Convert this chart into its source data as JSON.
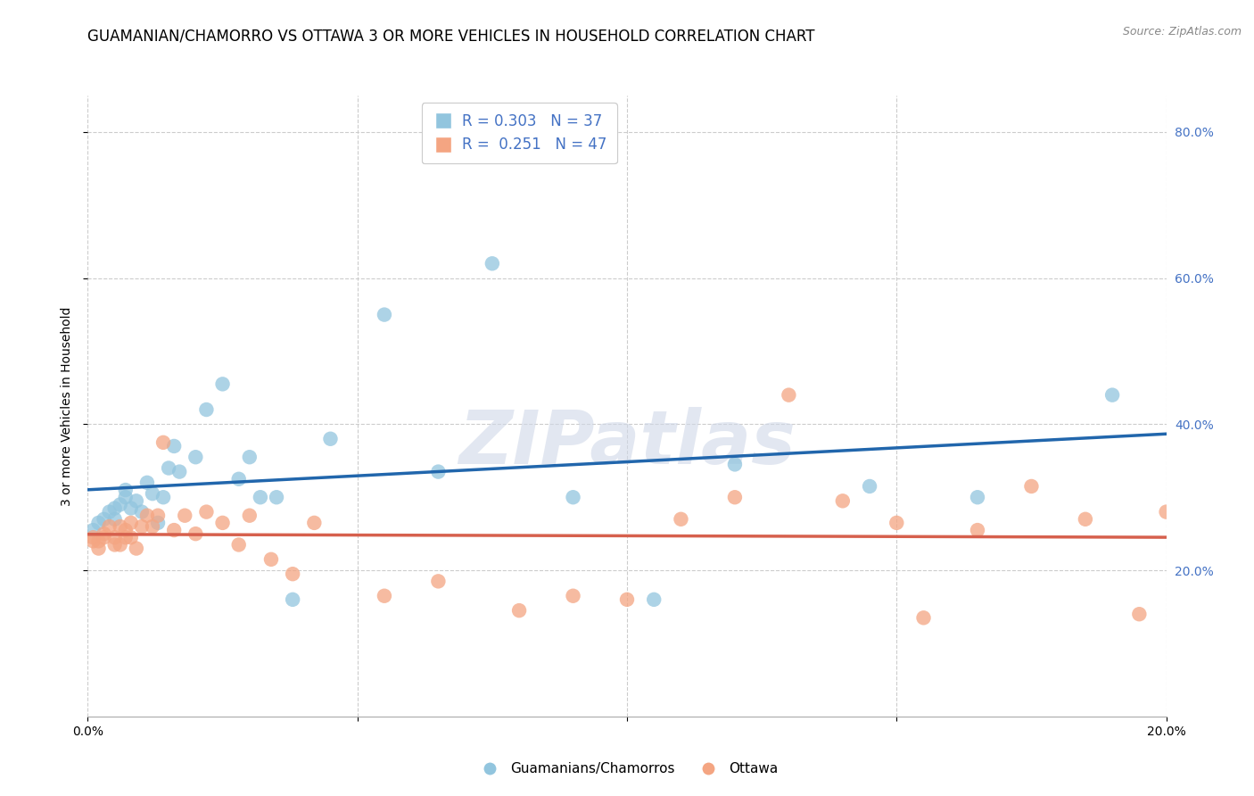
{
  "title": "GUAMANIAN/CHAMORRO VS OTTAWA 3 OR MORE VEHICLES IN HOUSEHOLD CORRELATION CHART",
  "source": "Source: ZipAtlas.com",
  "ylabel": "3 or more Vehicles in Household",
  "x_min": 0.0,
  "x_max": 0.2,
  "y_min": 0.0,
  "y_max": 0.85,
  "x_ticks": [
    0.0,
    0.05,
    0.1,
    0.15,
    0.2
  ],
  "x_tick_labels": [
    "0.0%",
    "",
    "",
    "",
    "20.0%"
  ],
  "y_ticks_right": [
    0.2,
    0.4,
    0.6,
    0.8
  ],
  "y_tick_labels_right": [
    "20.0%",
    "40.0%",
    "60.0%",
    "80.0%"
  ],
  "legend_blue_R": 0.303,
  "legend_blue_N": 37,
  "legend_pink_R": 0.251,
  "legend_pink_N": 47,
  "series_blue_label": "Guamanians/Chamorros",
  "series_pink_label": "Ottawa",
  "blue_color": "#92c5de",
  "pink_color": "#f4a582",
  "blue_line_color": "#2166ac",
  "pink_line_color": "#d6604d",
  "background_color": "#ffffff",
  "grid_color": "#cccccc",
  "blue_x": [
    0.001,
    0.002,
    0.003,
    0.004,
    0.005,
    0.005,
    0.006,
    0.007,
    0.007,
    0.008,
    0.009,
    0.01,
    0.011,
    0.012,
    0.013,
    0.014,
    0.015,
    0.016,
    0.017,
    0.02,
    0.022,
    0.025,
    0.028,
    0.03,
    0.032,
    0.035,
    0.038,
    0.045,
    0.055,
    0.065,
    0.075,
    0.09,
    0.105,
    0.12,
    0.145,
    0.165,
    0.19
  ],
  "blue_y": [
    0.255,
    0.265,
    0.27,
    0.28,
    0.27,
    0.285,
    0.29,
    0.3,
    0.31,
    0.285,
    0.295,
    0.28,
    0.32,
    0.305,
    0.265,
    0.3,
    0.34,
    0.37,
    0.335,
    0.355,
    0.42,
    0.455,
    0.325,
    0.355,
    0.3,
    0.3,
    0.16,
    0.38,
    0.55,
    0.335,
    0.62,
    0.3,
    0.16,
    0.345,
    0.315,
    0.3,
    0.44
  ],
  "pink_x": [
    0.001,
    0.001,
    0.002,
    0.002,
    0.003,
    0.003,
    0.004,
    0.005,
    0.005,
    0.006,
    0.006,
    0.007,
    0.007,
    0.008,
    0.008,
    0.009,
    0.01,
    0.011,
    0.012,
    0.013,
    0.014,
    0.016,
    0.018,
    0.02,
    0.022,
    0.025,
    0.028,
    0.03,
    0.034,
    0.038,
    0.042,
    0.055,
    0.065,
    0.08,
    0.09,
    0.1,
    0.11,
    0.12,
    0.13,
    0.14,
    0.15,
    0.155,
    0.165,
    0.175,
    0.185,
    0.195,
    0.2
  ],
  "pink_y": [
    0.24,
    0.245,
    0.23,
    0.24,
    0.245,
    0.25,
    0.26,
    0.235,
    0.245,
    0.235,
    0.26,
    0.245,
    0.255,
    0.245,
    0.265,
    0.23,
    0.26,
    0.275,
    0.26,
    0.275,
    0.375,
    0.255,
    0.275,
    0.25,
    0.28,
    0.265,
    0.235,
    0.275,
    0.215,
    0.195,
    0.265,
    0.165,
    0.185,
    0.145,
    0.165,
    0.16,
    0.27,
    0.3,
    0.44,
    0.295,
    0.265,
    0.135,
    0.255,
    0.315,
    0.27,
    0.14,
    0.28
  ],
  "watermark_text": "ZIPatlas",
  "title_fontsize": 12,
  "axis_label_fontsize": 10,
  "tick_fontsize": 10
}
